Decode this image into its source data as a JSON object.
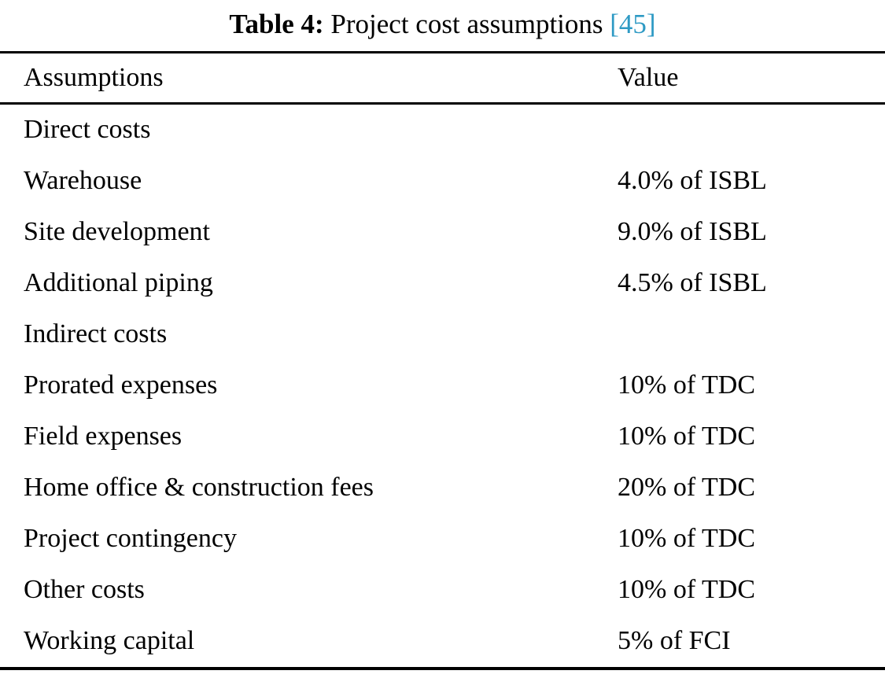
{
  "caption": {
    "label": "Table 4:",
    "title": " Project cost assumptions ",
    "citation": "[45]"
  },
  "colors": {
    "citation_link": "#2e9ac4",
    "rule": "#000000",
    "background": "#ffffff"
  },
  "table": {
    "headers": {
      "assumptions": "Assumptions",
      "value": "Value"
    },
    "rows": [
      {
        "assumption": "Direct costs",
        "value": ""
      },
      {
        "assumption": "Warehouse",
        "value": "4.0% of ISBL"
      },
      {
        "assumption": "Site development",
        "value": "9.0% of ISBL"
      },
      {
        "assumption": "Additional piping",
        "value": "4.5% of ISBL"
      },
      {
        "assumption": "Indirect costs",
        "value": ""
      },
      {
        "assumption": "Prorated expenses",
        "value": "10% of TDC"
      },
      {
        "assumption": "Field expenses",
        "value": "10% of TDC"
      },
      {
        "assumption": "Home office & construction fees",
        "value": "20% of TDC"
      },
      {
        "assumption": "Project contingency",
        "value": "10% of TDC"
      },
      {
        "assumption": "Other costs",
        "value": "10% of TDC"
      },
      {
        "assumption": "Working capital",
        "value": "5% of FCI"
      }
    ]
  }
}
